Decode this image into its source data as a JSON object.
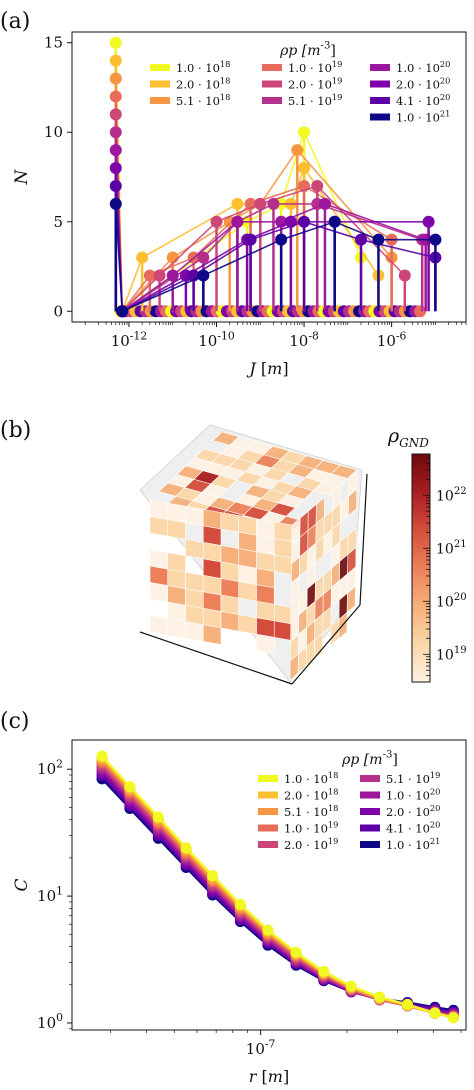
{
  "palette": [
    "#f0f921",
    "#fbbf30",
    "#f89540",
    "#e86c5c",
    "#cc4778",
    "#b52f8c",
    "#9c179e",
    "#7e03a8",
    "#5c01a6",
    "#2c0594",
    "#0d0887"
  ],
  "panels": {
    "a": {
      "letter": "(a)"
    },
    "b": {
      "letter": "(b)"
    },
    "c": {
      "letter": "(c)"
    }
  },
  "chart_data": [
    {
      "id": "a",
      "type": "scatter",
      "style": "stem-lines-with-markers",
      "xscale": "log",
      "xlabel": "J [m]",
      "ylabel": "N",
      "xlim": [
        5e-14,
        5e-05
      ],
      "ylim": [
        -0.6,
        15.6
      ],
      "x_ticks": [
        {
          "value": 1e-12,
          "label": "10^-12"
        },
        {
          "value": 1e-10,
          "label": "10^-10"
        },
        {
          "value": 1e-08,
          "label": "10^-8"
        },
        {
          "value": 1e-06,
          "label": "10^-6"
        }
      ],
      "y_ticks": [
        0,
        5,
        10,
        15
      ],
      "legend_title": "ρp [m^-3]",
      "legend_entries": [
        "1.0 · 10^18",
        "2.0 · 10^18",
        "5.1 · 10^18",
        "1.0 · 10^19",
        "2.0 · 10^19",
        "5.1 · 10^19",
        "1.0 · 10^20",
        "2.0 · 10^20",
        "4.1 · 10^20",
        "1.0 · 10^21"
      ],
      "legend_placement": "top-right",
      "series_colors": [
        "#f0f921",
        "#fbbf30",
        "#f89540",
        "#e86c5c",
        "#cc4778",
        "#b52f8c",
        "#9c179e",
        "#7e03a8",
        "#5c01a6",
        "#0d0887"
      ],
      "series": [
        {
          "peak": 15,
          "x": [
            5e-13,
            7e-13,
            1e-11,
            5e-10,
            3e-09,
            1e-08,
            2e-07
          ],
          "y": [
            15,
            0,
            2,
            5,
            6,
            10,
            3
          ]
        },
        {
          "peak": 14,
          "x": [
            5e-13,
            7e-13,
            2e-12,
            3e-10,
            5e-09,
            1e-08,
            5e-07
          ],
          "y": [
            14,
            0,
            3,
            6,
            6,
            8,
            2
          ]
        },
        {
          "peak": 13,
          "x": [
            5e-13,
            7e-13,
            1e-11,
            2e-10,
            1e-09,
            7e-09,
            1e-06
          ],
          "y": [
            13,
            0,
            3,
            5,
            6,
            9,
            3
          ]
        },
        {
          "peak": 12,
          "x": [
            5e-13,
            7e-13,
            3e-12,
            3e-11,
            6e-10,
            1e-08,
            1e-06
          ],
          "y": [
            12,
            0,
            2,
            3,
            6,
            7,
            4
          ]
        },
        {
          "peak": 11,
          "x": [
            5e-13,
            7e-13,
            5e-12,
            1e-10,
            1e-09,
            2e-08,
            2e-06
          ],
          "y": [
            11,
            0,
            2,
            5,
            6,
            7,
            2
          ]
        },
        {
          "peak": 10,
          "x": [
            5e-13,
            7e-13,
            5e-11,
            3e-10,
            2e-09,
            2e-08,
            5e-06
          ],
          "y": [
            10,
            0,
            3,
            5,
            6,
            6,
            4
          ]
        },
        {
          "peak": 9,
          "x": [
            5e-13,
            7e-13,
            1e-11,
            3e-10,
            3e-09,
            3e-08,
            6e-06
          ],
          "y": [
            9,
            0,
            2,
            5,
            5,
            6,
            4
          ]
        },
        {
          "peak": 8,
          "x": [
            5e-13,
            7e-13,
            2e-11,
            5e-10,
            5e-09,
            5e-08,
            7e-06
          ],
          "y": [
            8,
            0,
            2,
            4,
            5,
            5,
            5
          ]
        },
        {
          "peak": 7,
          "x": [
            5e-13,
            7e-13,
            3e-11,
            6e-10,
            1e-08,
            2e-07,
            1e-05
          ],
          "y": [
            7,
            0,
            2,
            4,
            5,
            4,
            3
          ]
        },
        {
          "peak": 6,
          "x": [
            5e-13,
            7e-13,
            5e-11,
            3e-09,
            5e-08,
            5e-07,
            1e-05
          ],
          "y": [
            6,
            0,
            2,
            4,
            5,
            4,
            4
          ]
        }
      ]
    },
    {
      "id": "b",
      "type": "heatmap",
      "style": "3d-voxel-cube",
      "colorbar_label": "ρ_GND",
      "colorbar_scale": "log",
      "colorbar_range": [
        3e+18,
        6e+22
      ],
      "colorbar_ticks": [
        {
          "value": 1e+19,
          "label": "10^19"
        },
        {
          "value": 1e+20,
          "label": "10^20"
        },
        {
          "value": 1e+21,
          "label": "10^21"
        },
        {
          "value": 1e+22,
          "label": "10^22"
        }
      ],
      "colormap": [
        "#fdf2e3",
        "#fbd7a9",
        "#f6b07b",
        "#ec8159",
        "#d44d3c",
        "#a91d20",
        "#6e0a0e"
      ]
    },
    {
      "id": "c",
      "type": "line",
      "xscale": "log",
      "yscale": "log",
      "xlabel": "r [m]",
      "ylabel": "C",
      "xlim": [
        2.2e-08,
        5.2e-07
      ],
      "ylim": [
        0.88,
        170
      ],
      "x_ticks": [
        {
          "value": 1e-07,
          "label": "10^-7"
        }
      ],
      "y_ticks": [
        {
          "value": 1,
          "label": "10^0"
        },
        {
          "value": 10,
          "label": "10^1"
        },
        {
          "value": 100,
          "label": "10^2"
        }
      ],
      "legend_title": "ρp [m^-3]",
      "legend_entries": [
        "1.0 · 10^18",
        "2.0 · 10^18",
        "5.1 · 10^18",
        "1.0 · 10^19",
        "2.0 · 10^19",
        "5.1 · 10^19",
        "1.0 · 10^20",
        "2.0 · 10^20",
        "4.1 · 10^20",
        "1.0 · 10^21"
      ],
      "legend_placement": "top-right",
      "series_colors": [
        "#f0f921",
        "#fbbf30",
        "#f89540",
        "#e86c5c",
        "#cc4778",
        "#b52f8c",
        "#9c179e",
        "#7e03a8",
        "#5c01a6",
        "#0d0887"
      ],
      "x": [
        2.8e-08,
        3.5e-08,
        4.4e-08,
        5.5e-08,
        6.8e-08,
        8.5e-08,
        1.06e-07,
        1.33e-07,
        1.66e-07,
        2.07e-07,
        2.6e-07,
        3.25e-07,
        4.05e-07,
        4.7e-07
      ],
      "series": [
        {
          "values": [
            127,
            73,
            42,
            24,
            14.5,
            8.6,
            5.4,
            3.6,
            2.55,
            1.95,
            1.6,
            1.4,
            1.2,
            1.1
          ]
        },
        {
          "values": [
            123,
            71,
            41,
            23.5,
            14.1,
            8.4,
            5.3,
            3.55,
            2.5,
            1.92,
            1.58,
            1.38,
            1.19,
            1.1
          ]
        },
        {
          "values": [
            118,
            68,
            39,
            22.5,
            13.5,
            8.1,
            5.1,
            3.45,
            2.45,
            1.88,
            1.55,
            1.37,
            1.19,
            1.11
          ]
        },
        {
          "values": [
            113,
            65,
            37.5,
            21.5,
            13,
            7.8,
            4.95,
            3.35,
            2.4,
            1.85,
            1.53,
            1.36,
            1.2,
            1.12
          ]
        },
        {
          "values": [
            108,
            62,
            36,
            20.7,
            12.5,
            7.5,
            4.8,
            3.25,
            2.35,
            1.82,
            1.52,
            1.36,
            1.21,
            1.13
          ]
        },
        {
          "values": [
            104,
            60,
            34.5,
            20,
            12,
            7.3,
            4.65,
            3.15,
            2.3,
            1.8,
            1.52,
            1.37,
            1.22,
            1.15
          ]
        },
        {
          "values": [
            99,
            57,
            33,
            19.2,
            11.6,
            7,
            4.5,
            3.05,
            2.25,
            1.78,
            1.52,
            1.38,
            1.24,
            1.17
          ]
        },
        {
          "values": [
            94,
            54,
            31.5,
            18.4,
            11.1,
            6.8,
            4.4,
            3,
            2.22,
            1.77,
            1.53,
            1.4,
            1.26,
            1.19
          ]
        },
        {
          "values": [
            89,
            51.5,
            30,
            17.6,
            10.6,
            6.5,
            4.25,
            2.92,
            2.18,
            1.76,
            1.54,
            1.42,
            1.29,
            1.22
          ]
        },
        {
          "values": [
            84,
            49,
            28.5,
            16.8,
            10.2,
            6.3,
            4.1,
            2.85,
            2.15,
            1.76,
            1.56,
            1.45,
            1.33,
            1.26
          ]
        }
      ]
    }
  ]
}
